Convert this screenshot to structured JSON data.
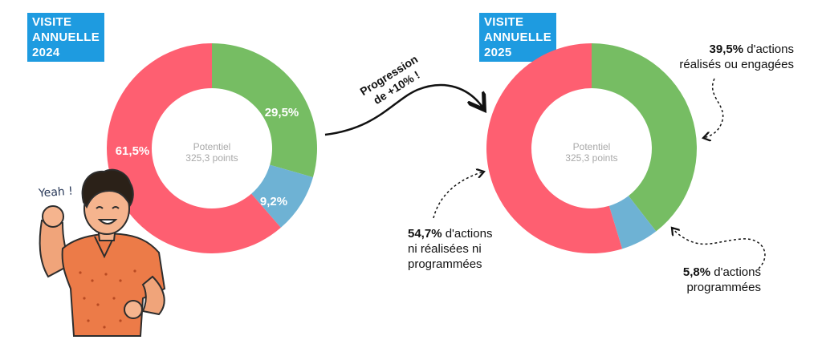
{
  "badges": [
    {
      "lines": [
        "VISITE",
        "ANNUELLE",
        "2024"
      ]
    },
    {
      "lines": [
        "VISITE",
        "ANNUELLE",
        "2025"
      ]
    }
  ],
  "arrow_label": [
    "Progression",
    "de +10% !"
  ],
  "exclamation": "Yeah !",
  "annotations": {
    "done": {
      "value": "39,5%",
      "text": " d'actions",
      "text2": "réalisés ou engagées"
    },
    "none": {
      "value": "54,7%",
      "text": " d'actions",
      "text2": "ni réalisées ni",
      "text3": "programmées"
    },
    "prog": {
      "value": "5,8%",
      "text": " d'actions",
      "text2": "programmées"
    }
  },
  "colors": {
    "done": "#76bd63",
    "programmed": "#6eb2d4",
    "none": "#fe5f71",
    "badge": "#1e9be0"
  },
  "chart_data": [
    {
      "type": "pie",
      "year": "2024",
      "center_label": [
        "Potentiel",
        "325,3 points"
      ],
      "slices": [
        {
          "label": "29,5%",
          "value": 29.5,
          "color": "#76bd63"
        },
        {
          "label": "9,2%",
          "value": 9.2,
          "color": "#6eb2d4"
        },
        {
          "label": "61,5%",
          "value": 61.5,
          "color": "#fe5f71"
        }
      ]
    },
    {
      "type": "pie",
      "year": "2025",
      "center_label": [
        "Potentiel",
        "325,3 points"
      ],
      "slices": [
        {
          "label": "",
          "value": 39.5,
          "color": "#76bd63"
        },
        {
          "label": "",
          "value": 5.8,
          "color": "#6eb2d4"
        },
        {
          "label": "",
          "value": 54.7,
          "color": "#fe5f71"
        }
      ]
    }
  ]
}
